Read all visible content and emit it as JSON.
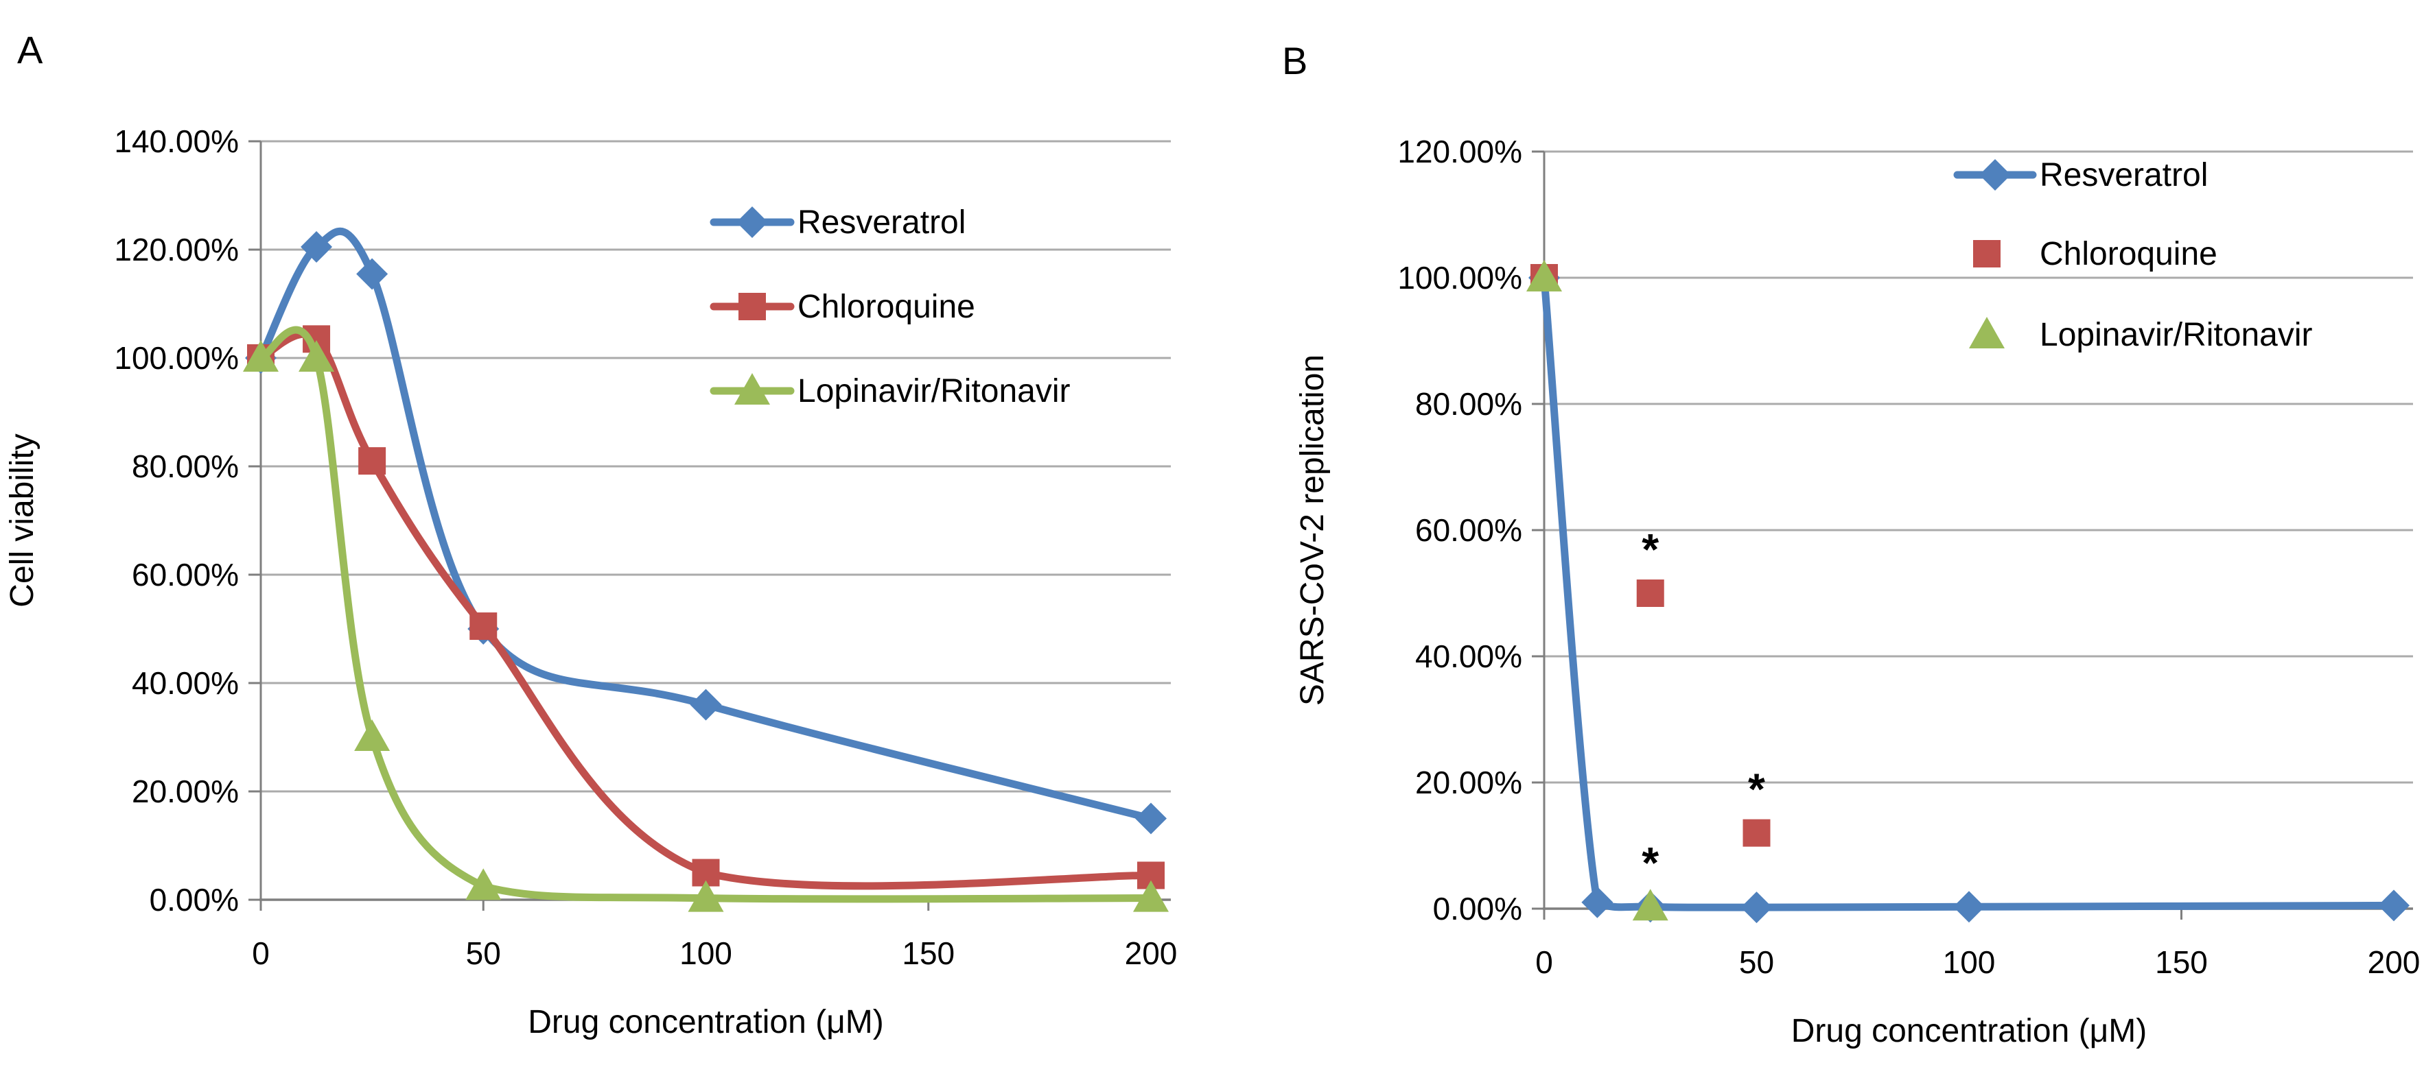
{
  "figure": {
    "background": "#ffffff",
    "text_color": "#000000",
    "grid_color": "#ababab",
    "axis_color": "#7f7f7f",
    "series_colors": {
      "resveratrol": "#4F81BD",
      "chloroquine": "#C0504D",
      "lopinavir_ritonavir": "#9BBB59"
    }
  },
  "chart_data": [
    {
      "type": "line",
      "panel_label": "A",
      "title": "",
      "xlabel": "Drug concentration (μM)",
      "ylabel": "Cell viability",
      "x_tick_labels": [
        "0",
        "50",
        "100",
        "150",
        "200"
      ],
      "x_tick_values": [
        0,
        50,
        100,
        150,
        200
      ],
      "y_tick_labels": [
        "0.00%",
        "20.00%",
        "40.00%",
        "60.00%",
        "80.00%",
        "100.00%",
        "120.00%",
        "140.00%"
      ],
      "y_tick_values": [
        0,
        20,
        40,
        60,
        80,
        100,
        120,
        140
      ],
      "xlim": [
        0,
        200
      ],
      "ylim": [
        0,
        140
      ],
      "grid": true,
      "legend_position": "inside-upper-right",
      "legend_entries": [
        "Resveratrol",
        "Chloroquine",
        "Lopinavir/Ritonavir"
      ],
      "series": [
        {
          "name": "Resveratrol",
          "color": "#4F81BD",
          "marker": "diamond",
          "smooth_line": true,
          "x": [
            0,
            12.5,
            25,
            50,
            100,
            200
          ],
          "y": [
            100,
            120.5,
            115.5,
            50,
            36,
            15
          ]
        },
        {
          "name": "Chloroquine",
          "color": "#C0504D",
          "marker": "square",
          "smooth_line": true,
          "x": [
            0,
            12.5,
            25,
            50,
            100,
            200
          ],
          "y": [
            100,
            103.5,
            81,
            50.5,
            5,
            4.5
          ]
        },
        {
          "name": "Lopinavir/Ritonavir",
          "color": "#9BBB59",
          "marker": "triangle",
          "smooth_line": true,
          "x": [
            0,
            12.5,
            25,
            50,
            100,
            200
          ],
          "y": [
            100,
            100,
            30,
            2.5,
            0.3,
            0.3
          ]
        }
      ],
      "annotations": []
    },
    {
      "type": "line",
      "panel_label": "B",
      "title": "",
      "xlabel": "Drug concentration (μM)",
      "ylabel": "SARS-CoV-2 replication",
      "x_tick_labels": [
        "0",
        "50",
        "100",
        "150",
        "200"
      ],
      "x_tick_values": [
        0,
        50,
        100,
        150,
        200
      ],
      "y_tick_labels": [
        "0.00%",
        "20.00%",
        "40.00%",
        "60.00%",
        "80.00%",
        "100.00%",
        "120.00%"
      ],
      "y_tick_values": [
        0,
        20,
        40,
        60,
        80,
        100,
        120
      ],
      "xlim": [
        0,
        200
      ],
      "ylim": [
        0,
        120
      ],
      "grid": true,
      "legend_position": "inside-upper-right",
      "legend_entries": [
        "Resveratrol",
        "Chloroquine",
        "Lopinavir/Ritonavir"
      ],
      "series": [
        {
          "name": "Resveratrol",
          "color": "#4F81BD",
          "marker": "diamond",
          "smooth_line": true,
          "x": [
            0,
            12.5,
            25,
            50,
            100,
            200
          ],
          "y": [
            100,
            1,
            0.3,
            0.2,
            0.3,
            0.5
          ]
        },
        {
          "name": "Chloroquine",
          "color": "#C0504D",
          "marker": "square",
          "smooth_line": false,
          "x": [
            0,
            25,
            50
          ],
          "y": [
            100,
            50,
            12
          ]
        },
        {
          "name": "Lopinavir/Ritonavir",
          "color": "#9BBB59",
          "marker": "triangle",
          "smooth_line": false,
          "x": [
            0,
            25
          ],
          "y": [
            100,
            0.3
          ]
        }
      ],
      "annotations": [
        {
          "text": "*",
          "x": 25,
          "y": 50,
          "series": "Chloroquine"
        },
        {
          "text": "*",
          "x": 50,
          "y": 12,
          "series": "Chloroquine"
        },
        {
          "text": "*",
          "x": 25,
          "y": 0.3,
          "series": "Lopinavir/Ritonavir"
        }
      ]
    }
  ]
}
